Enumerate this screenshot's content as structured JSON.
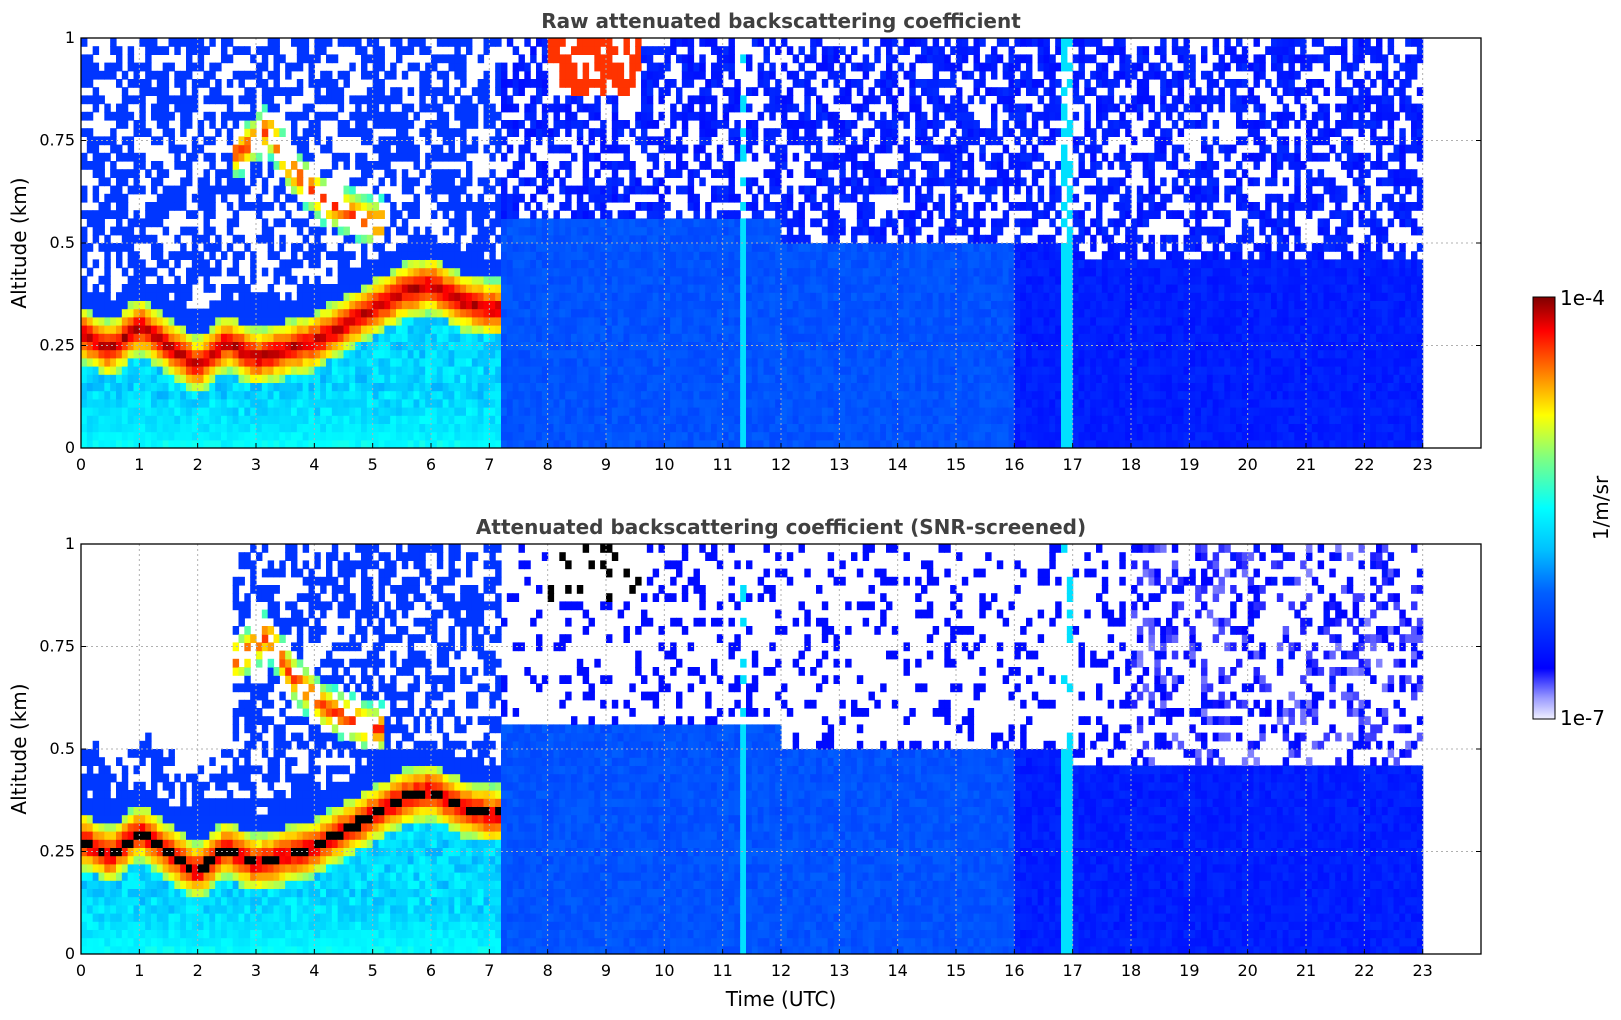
{
  "chart_data": [
    {
      "type": "heatmap",
      "title": "Raw attenuated backscattering coefficient",
      "xlabel": "",
      "ylabel": "Altitude (km)",
      "xlim": [
        0,
        24
      ],
      "ylim": [
        0,
        1
      ],
      "xticks": [
        "0",
        "1",
        "2",
        "3",
        "4",
        "5",
        "6",
        "7",
        "8",
        "9",
        "10",
        "11",
        "12",
        "13",
        "14",
        "15",
        "16",
        "17",
        "18",
        "19",
        "20",
        "21",
        "22",
        "23"
      ],
      "yticks": [
        "0",
        "0.25",
        "0.5",
        "0.75",
        "1"
      ],
      "data_extent_hours": [
        0,
        23
      ],
      "grid": true,
      "screened": false,
      "features": {
        "aerosol_layer_top_km": [
          [
            0,
            0.28
          ],
          [
            0.5,
            0.24
          ],
          [
            1,
            0.3
          ],
          [
            1.5,
            0.25
          ],
          [
            2,
            0.2
          ],
          [
            2.5,
            0.26
          ],
          [
            3,
            0.22
          ],
          [
            3.5,
            0.24
          ],
          [
            4,
            0.26
          ],
          [
            4.5,
            0.3
          ],
          [
            5,
            0.34
          ],
          [
            5.5,
            0.38
          ],
          [
            6,
            0.4
          ],
          [
            6.5,
            0.36
          ],
          [
            7,
            0.34
          ]
        ],
        "elevated_layer_km": [
          [
            2.7,
            0.72
          ],
          [
            3.2,
            0.78
          ],
          [
            3.6,
            0.68
          ],
          [
            4.2,
            0.6
          ],
          [
            5,
            0.55
          ]
        ]
      }
    },
    {
      "type": "heatmap",
      "title": "Attenuated backscattering coefficient (SNR-screened)",
      "xlabel": "Time (UTC)",
      "ylabel": "Altitude (km)",
      "xlim": [
        0,
        24
      ],
      "ylim": [
        0,
        1
      ],
      "xticks": [
        "0",
        "1",
        "2",
        "3",
        "4",
        "5",
        "6",
        "7",
        "8",
        "9",
        "10",
        "11",
        "12",
        "13",
        "14",
        "15",
        "16",
        "17",
        "18",
        "19",
        "20",
        "21",
        "22",
        "23"
      ],
      "yticks": [
        "0",
        "0.25",
        "0.5",
        "0.75",
        "1"
      ],
      "data_extent_hours": [
        0,
        23
      ],
      "grid": true,
      "screened": true
    }
  ],
  "colorbar": {
    "label": "1/m/sr",
    "max_label": "1e-4",
    "min_label": "1e-7",
    "colormap": [
      "#ffffff",
      "#e6e6ff",
      "#0000ff",
      "#0050ff",
      "#00aaff",
      "#00ffff",
      "#80ff80",
      "#ffff00",
      "#ff8000",
      "#ff0000",
      "#800000"
    ],
    "placement": "right"
  }
}
